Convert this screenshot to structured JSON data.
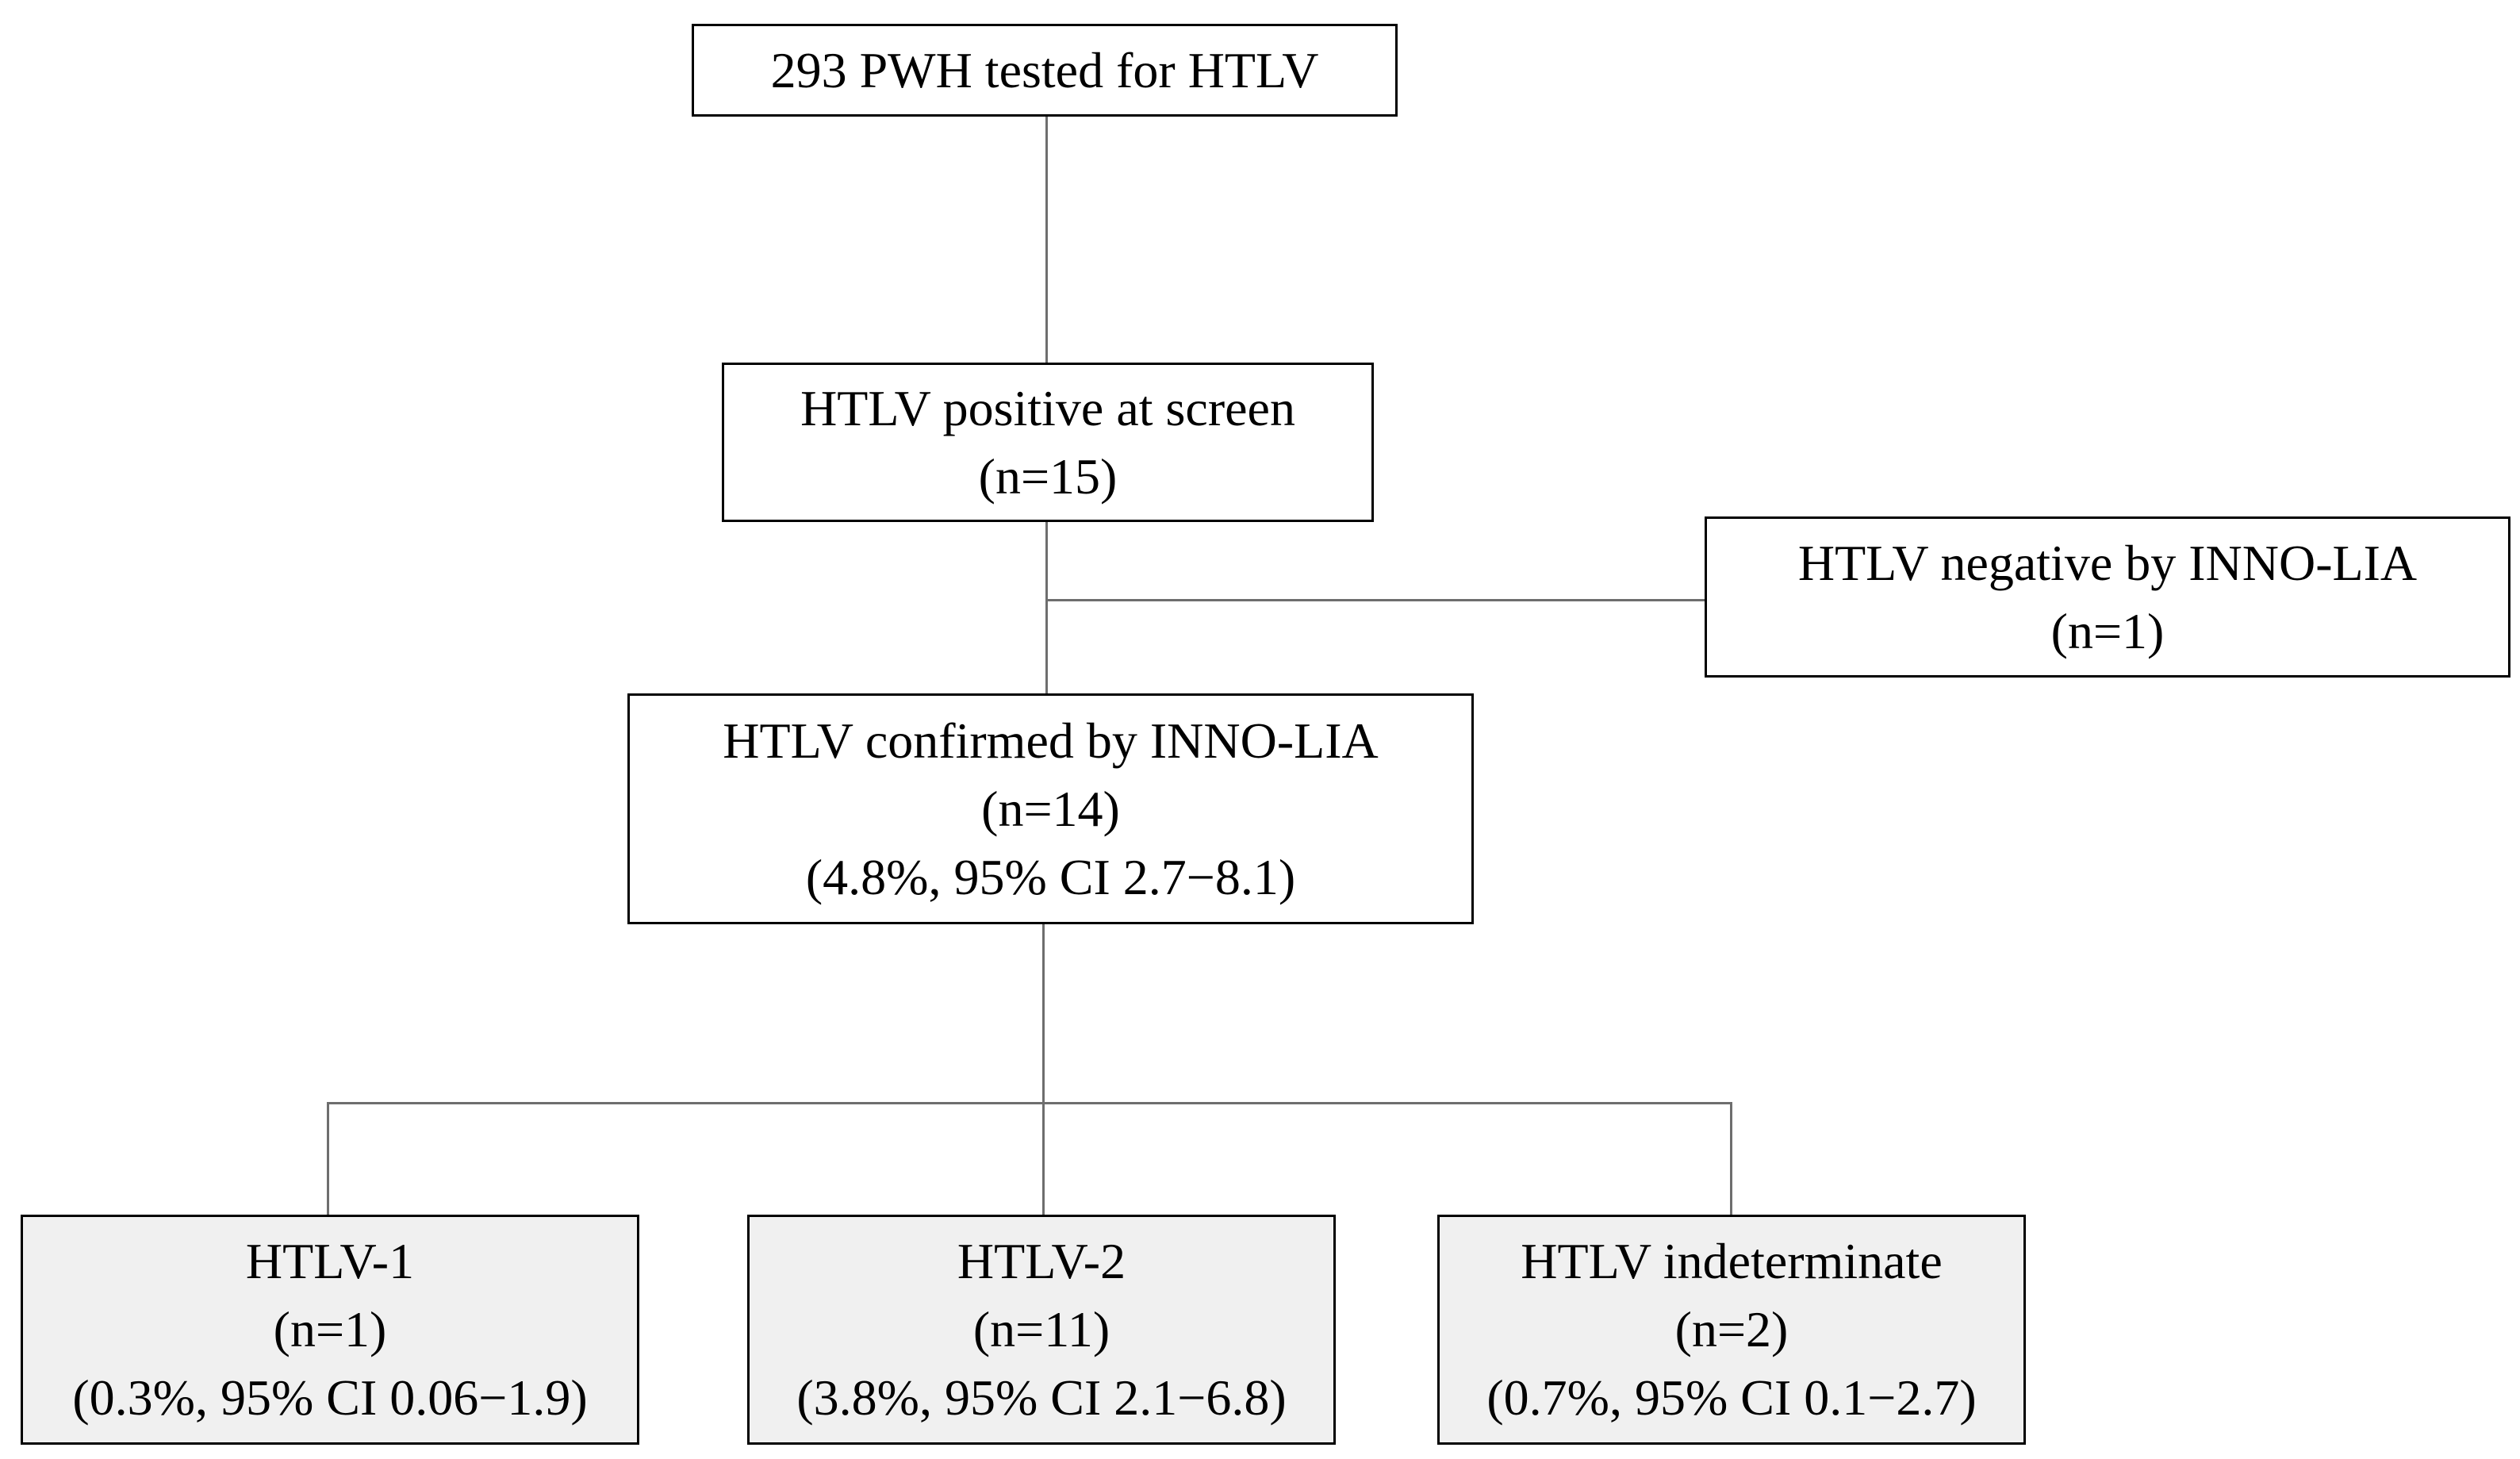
{
  "diagram": {
    "top": {
      "line1": "293 PWH tested for HTLV"
    },
    "screen": {
      "line1": "HTLV positive at screen",
      "line2": "(n=15)"
    },
    "negative": {
      "line1": "HTLV negative by INNO-LIA",
      "line2": "(n=1)"
    },
    "confirmed": {
      "line1": "HTLV confirmed by INNO-LIA",
      "line2": "(n=14)",
      "line3": "(4.8%, 95% CI 2.7−8.1)"
    },
    "htlv1": {
      "line1": "HTLV-1",
      "line2": "(n=1)",
      "line3": "(0.3%, 95% CI 0.06−1.9)"
    },
    "htlv2": {
      "line1": "HTLV-2",
      "line2": "(n=11)",
      "line3": "(3.8%, 95% CI 2.1−6.8)"
    },
    "indeterminate": {
      "line1": "HTLV indeterminate",
      "line2": "(n=2)",
      "line3": "(0.7%, 95% CI 0.1−2.7)"
    }
  }
}
